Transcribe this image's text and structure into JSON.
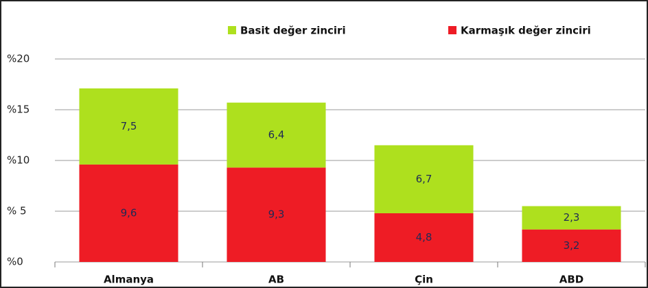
{
  "chart_data": {
    "type": "stacked_bar",
    "categories": [
      "Almanya",
      "AB",
      "Çin",
      "ABD"
    ],
    "series": [
      {
        "name": "Karmaşık değer zinciri",
        "color": "#ee1c25",
        "values": [
          9.6,
          9.3,
          4.8,
          3.2
        ],
        "value_labels": [
          "9,6",
          "9,3",
          "4,8",
          "3,2"
        ]
      },
      {
        "name": "Basit değer zinciri",
        "color": "#aee01e",
        "values": [
          7.5,
          6.4,
          6.7,
          2.3
        ],
        "value_labels": [
          "7,5",
          "6,4",
          "6,7",
          "2,3"
        ]
      }
    ],
    "ylim": [
      0,
      20
    ],
    "yticks": [
      {
        "value": 0,
        "label": "%0"
      },
      {
        "value": 5,
        "label": "% 5"
      },
      {
        "value": 10,
        "label": "%10"
      },
      {
        "value": 15,
        "label": "%15"
      },
      {
        "value": 20,
        "label": "%20"
      }
    ],
    "grid": true,
    "legend": "top"
  }
}
